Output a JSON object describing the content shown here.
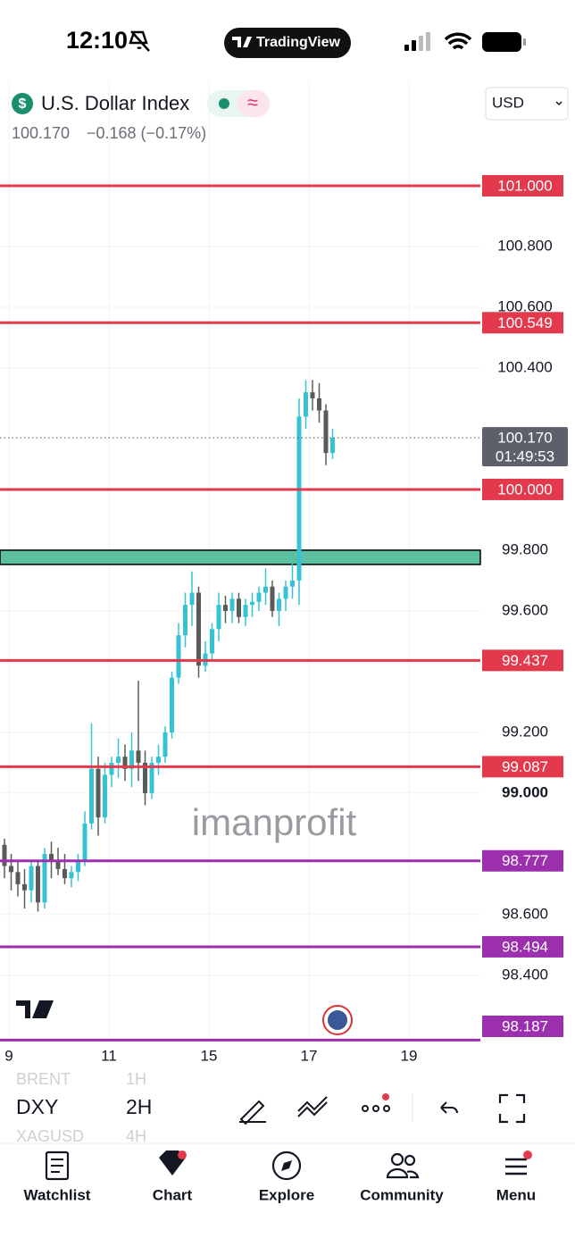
{
  "status_bar": {
    "time": "12:10",
    "app": "TradingView"
  },
  "header": {
    "symbol": "U.S. Dollar Index",
    "price": "100.170",
    "change": "−0.168 (−0.17%)",
    "currency": "USD"
  },
  "chart_data": {
    "type": "candlestick",
    "ylim": [
      98.185,
      101.347
    ],
    "yticks": [
      {
        "value": 98.4,
        "label": "98.400"
      },
      {
        "value": 98.6,
        "label": "98.600"
      },
      {
        "value": 99.0,
        "label": "99.000"
      },
      {
        "value": 99.2,
        "label": "99.200"
      },
      {
        "value": 99.6,
        "label": "99.600"
      },
      {
        "value": 99.8,
        "label": "99.800"
      },
      {
        "value": 100.4,
        "label": "100.400"
      },
      {
        "value": 100.6,
        "label": "100.600"
      },
      {
        "value": 100.8,
        "label": "100.800"
      }
    ],
    "x_labels": [
      "9",
      "11",
      "15",
      "17",
      "19"
    ],
    "up_color": "#35c3d3",
    "down_color": "#5a5a5a",
    "open": [
      98.83,
      98.76,
      98.74,
      98.7,
      98.68,
      98.76,
      98.64,
      98.8,
      98.78,
      98.75,
      98.72,
      98.74,
      98.78,
      98.9,
      99.08,
      98.92,
      99.06,
      99.1,
      99.12,
      99.08,
      99.14,
      99.1,
      99.0,
      99.1,
      99.12,
      99.2,
      99.38,
      99.52,
      99.62,
      99.66,
      99.42,
      99.46,
      99.54,
      99.62,
      99.6,
      99.64,
      99.58,
      99.62,
      99.63,
      99.66,
      99.68,
      99.6,
      99.64,
      99.68,
      99.7,
      100.24,
      100.32,
      100.3,
      100.26,
      100.12
    ],
    "high": [
      98.85,
      98.8,
      98.78,
      98.75,
      98.78,
      98.78,
      98.82,
      98.84,
      98.82,
      98.8,
      98.76,
      98.8,
      98.94,
      99.23,
      99.12,
      99.1,
      99.12,
      99.18,
      99.16,
      99.2,
      99.37,
      99.14,
      99.12,
      99.16,
      99.22,
      99.4,
      99.56,
      99.66,
      99.73,
      99.68,
      99.5,
      99.56,
      99.66,
      99.65,
      99.66,
      99.66,
      99.64,
      99.66,
      99.68,
      99.74,
      99.7,
      99.66,
      99.7,
      99.76,
      100.3,
      100.36,
      100.36,
      100.35,
      100.28,
      100.2
    ],
    "low": [
      98.72,
      98.68,
      98.66,
      98.62,
      98.64,
      98.61,
      98.62,
      98.72,
      98.73,
      98.7,
      98.69,
      98.71,
      98.76,
      98.88,
      98.86,
      98.9,
      99.02,
      99.05,
      99.04,
      99.02,
      99.04,
      98.96,
      98.98,
      99.06,
      99.1,
      99.18,
      99.36,
      99.48,
      99.55,
      99.38,
      99.4,
      99.44,
      99.5,
      99.56,
      99.56,
      99.56,
      99.55,
      99.58,
      99.6,
      99.62,
      99.58,
      99.55,
      99.6,
      99.64,
      99.62,
      100.2,
      100.26,
      100.22,
      100.08,
      100.1
    ],
    "close": [
      98.76,
      98.74,
      98.7,
      98.68,
      98.76,
      98.64,
      98.8,
      98.78,
      98.75,
      98.72,
      98.74,
      98.78,
      98.9,
      99.08,
      98.92,
      99.06,
      99.1,
      99.12,
      99.08,
      99.14,
      99.1,
      99.0,
      99.1,
      99.12,
      99.2,
      99.38,
      99.52,
      99.62,
      99.66,
      99.42,
      99.46,
      99.54,
      99.62,
      99.6,
      99.64,
      99.58,
      99.62,
      99.63,
      99.66,
      99.68,
      99.6,
      99.64,
      99.68,
      99.7,
      100.24,
      100.32,
      100.3,
      100.26,
      100.12,
      100.17
    ],
    "levels": [
      {
        "value": 101.0,
        "label": "101.000",
        "color": "#e23a4c"
      },
      {
        "value": 100.549,
        "label": "100.549",
        "color": "#e23a4c"
      },
      {
        "value": 100.0,
        "label": "100.000",
        "color": "#e23a4c"
      },
      {
        "value": 99.437,
        "label": "99.437",
        "color": "#e23a4c"
      },
      {
        "value": 99.087,
        "label": "99.087",
        "color": "#e23a4c"
      },
      {
        "value": 98.777,
        "label": "98.777",
        "color": "#9b2fae"
      },
      {
        "value": 98.494,
        "label": "98.494",
        "color": "#9b2fae"
      },
      {
        "value": 98.187,
        "label": "98.187",
        "color": "#9b2fae"
      }
    ],
    "zone": {
      "from": 99.753,
      "to": 99.8,
      "color": "#5cc0a0"
    },
    "last": {
      "value": 100.17,
      "label": "100.170",
      "countdown": "01:49:53"
    },
    "watermark": "imanprofit"
  },
  "toolbar": {
    "symbols": [
      "BRENT",
      "DXY",
      "XAGUSD"
    ],
    "intervals": [
      "1H",
      "2H",
      "4H"
    ]
  },
  "tabs": [
    "Watchlist",
    "Chart",
    "Explore",
    "Community",
    "Menu"
  ]
}
